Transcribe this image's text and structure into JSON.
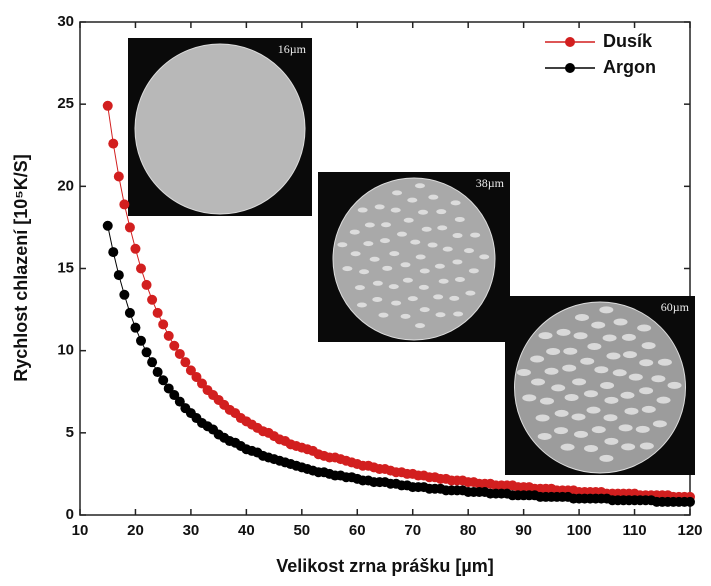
{
  "chart_data": {
    "type": "scatter",
    "xlabel": "Velikost zrna prášku [µm]",
    "ylabel": "Rychlost chlazení [10⁵K/S]",
    "x": [
      15,
      16,
      17,
      18,
      19,
      20,
      21,
      22,
      23,
      24,
      25,
      26,
      27,
      28,
      29,
      30,
      31,
      32,
      33,
      34,
      35,
      36,
      37,
      38,
      39,
      40,
      41,
      42,
      43,
      44,
      45,
      46,
      47,
      48,
      49,
      50,
      51,
      52,
      53,
      54,
      55,
      56,
      57,
      58,
      59,
      60,
      61,
      62,
      63,
      64,
      65,
      66,
      67,
      68,
      69,
      70,
      71,
      72,
      73,
      74,
      75,
      76,
      77,
      78,
      79,
      80,
      81,
      82,
      83,
      84,
      85,
      86,
      87,
      88,
      89,
      90,
      91,
      92,
      93,
      94,
      95,
      96,
      97,
      98,
      99,
      100,
      101,
      102,
      103,
      104,
      105,
      106,
      107,
      108,
      109,
      110,
      111,
      112,
      113,
      114,
      115,
      116,
      117,
      118,
      119,
      120
    ],
    "series": [
      {
        "name": "Dusík",
        "color": "#d21f1f",
        "values": [
          24.9,
          22.6,
          20.6,
          18.9,
          17.5,
          16.2,
          15.0,
          14.0,
          13.1,
          12.3,
          11.6,
          10.9,
          10.3,
          9.8,
          9.3,
          8.8,
          8.4,
          8.0,
          7.6,
          7.3,
          7.0,
          6.7,
          6.4,
          6.2,
          5.9,
          5.7,
          5.5,
          5.3,
          5.1,
          5.0,
          4.8,
          4.6,
          4.5,
          4.3,
          4.2,
          4.1,
          4.0,
          3.9,
          3.7,
          3.6,
          3.5,
          3.5,
          3.4,
          3.3,
          3.2,
          3.1,
          3.0,
          3.0,
          2.9,
          2.8,
          2.8,
          2.7,
          2.6,
          2.6,
          2.5,
          2.5,
          2.4,
          2.4,
          2.3,
          2.3,
          2.2,
          2.2,
          2.1,
          2.1,
          2.1,
          2.0,
          2.0,
          1.9,
          1.9,
          1.9,
          1.8,
          1.8,
          1.8,
          1.8,
          1.7,
          1.7,
          1.7,
          1.6,
          1.6,
          1.6,
          1.6,
          1.5,
          1.5,
          1.5,
          1.5,
          1.4,
          1.4,
          1.4,
          1.4,
          1.4,
          1.3,
          1.3,
          1.3,
          1.3,
          1.3,
          1.3,
          1.2,
          1.2,
          1.2,
          1.2,
          1.2,
          1.2,
          1.1,
          1.1,
          1.1,
          1.1
        ]
      },
      {
        "name": "Argon",
        "color": "#000000",
        "values": [
          17.6,
          16.0,
          14.6,
          13.4,
          12.3,
          11.4,
          10.6,
          9.9,
          9.3,
          8.7,
          8.2,
          7.7,
          7.3,
          6.9,
          6.5,
          6.2,
          5.9,
          5.6,
          5.4,
          5.2,
          4.9,
          4.7,
          4.5,
          4.4,
          4.2,
          4.0,
          3.9,
          3.8,
          3.6,
          3.5,
          3.4,
          3.3,
          3.2,
          3.1,
          3.0,
          2.9,
          2.8,
          2.7,
          2.6,
          2.6,
          2.5,
          2.4,
          2.4,
          2.3,
          2.3,
          2.2,
          2.1,
          2.1,
          2.0,
          2.0,
          2.0,
          1.9,
          1.9,
          1.8,
          1.8,
          1.7,
          1.7,
          1.7,
          1.6,
          1.6,
          1.6,
          1.5,
          1.5,
          1.5,
          1.5,
          1.4,
          1.4,
          1.4,
          1.4,
          1.3,
          1.3,
          1.3,
          1.3,
          1.2,
          1.2,
          1.2,
          1.2,
          1.2,
          1.1,
          1.1,
          1.1,
          1.1,
          1.1,
          1.1,
          1.0,
          1.0,
          1.0,
          1.0,
          1.0,
          1.0,
          1.0,
          0.9,
          0.9,
          0.9,
          0.9,
          0.9,
          0.9,
          0.9,
          0.9,
          0.8,
          0.8,
          0.8,
          0.8,
          0.8,
          0.8,
          0.8
        ]
      }
    ],
    "xlim": [
      10,
      120
    ],
    "xticks": [
      10,
      20,
      30,
      40,
      50,
      60,
      70,
      80,
      90,
      100,
      110,
      120
    ],
    "ylim": [
      0,
      30
    ],
    "yticks": [
      0,
      5,
      10,
      15,
      20,
      25,
      30
    ],
    "legend": "upper right",
    "annotations": [
      "16µm",
      "38µm",
      "60µm"
    ]
  }
}
